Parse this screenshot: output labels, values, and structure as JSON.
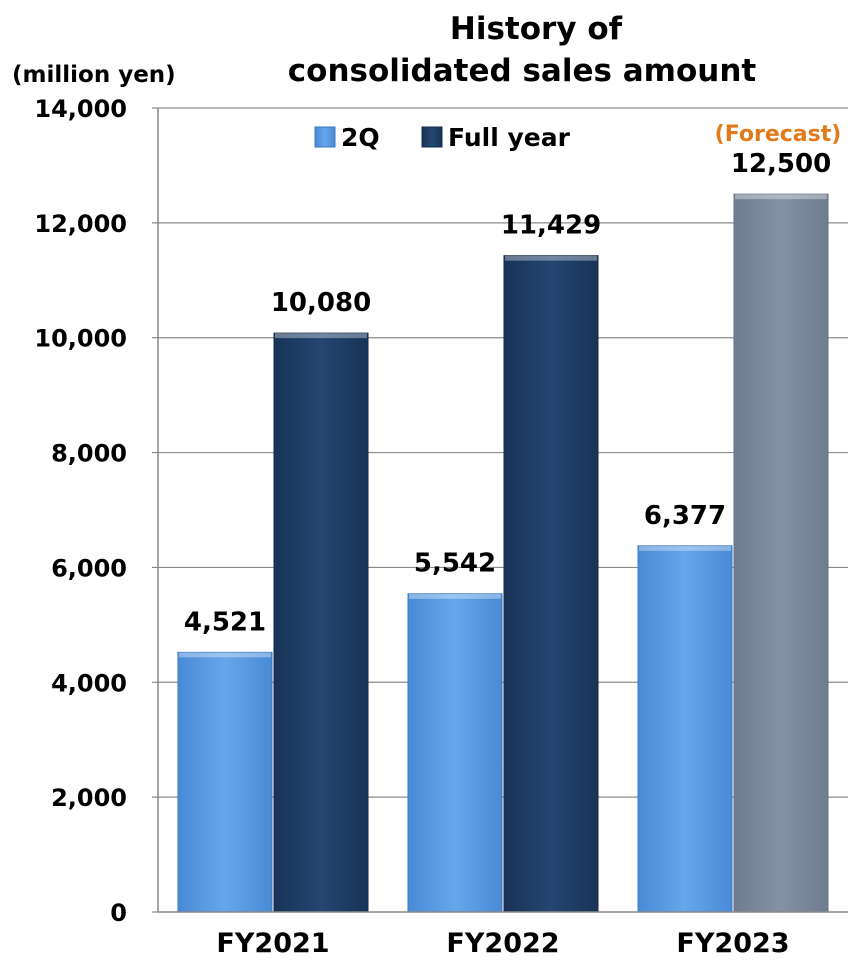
{
  "chart_data": {
    "type": "bar",
    "title_line1": "History of",
    "title_line2": "consolidated sales amount",
    "unit_label": "(million yen)",
    "categories": [
      "FY2021",
      "FY2022",
      "FY2023"
    ],
    "series": [
      {
        "name": "2Q",
        "values": [
          4521,
          5542,
          6377
        ],
        "color": "#5b9be0"
      },
      {
        "name": "Full year",
        "values": [
          10080,
          11429,
          12500
        ],
        "color": "#1f3d66"
      }
    ],
    "data_labels": {
      "2Q": [
        "4,521",
        "5,542",
        "6,377"
      ],
      "Full year": [
        "10,080",
        "11,429",
        "12,500"
      ]
    },
    "forecast": {
      "category": "FY2023",
      "series": "Full year",
      "label": "(Forecast)",
      "color": "#7a8699",
      "label_color": "#e07a1a"
    },
    "ylim": [
      0,
      14000
    ],
    "yticks": [
      0,
      2000,
      4000,
      6000,
      8000,
      10000,
      12000,
      14000
    ],
    "ytick_labels": [
      "0",
      "2,000",
      "4,000",
      "6,000",
      "8,000",
      "10,000",
      "12,000",
      "14,000"
    ],
    "grid": true,
    "legend_position": "top"
  }
}
